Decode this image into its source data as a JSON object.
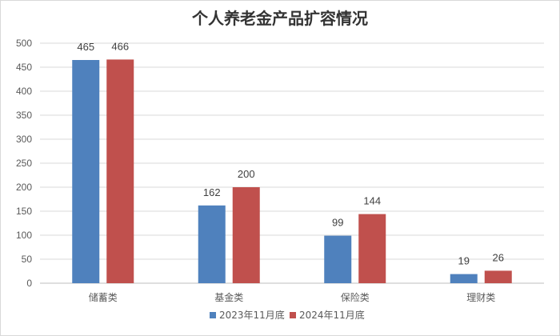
{
  "chart_data": {
    "type": "bar",
    "title": "个人养老金产品扩容情况",
    "xlabel": "",
    "ylabel": "",
    "categories": [
      "储蓄类",
      "基金类",
      "保险类",
      "理财类"
    ],
    "series": [
      {
        "name": "2023年11月底",
        "values": [
          465,
          162,
          99,
          19
        ],
        "color": "#4f81bd"
      },
      {
        "name": "2024年11月底",
        "values": [
          466,
          200,
          144,
          26
        ],
        "color": "#c0504d"
      }
    ],
    "ylim": [
      0,
      500
    ],
    "yticks": [
      "0",
      "50",
      "100",
      "150",
      "200",
      "250",
      "300",
      "350",
      "400",
      "450",
      "500"
    ],
    "grid": true,
    "legend_position": "bottom"
  }
}
